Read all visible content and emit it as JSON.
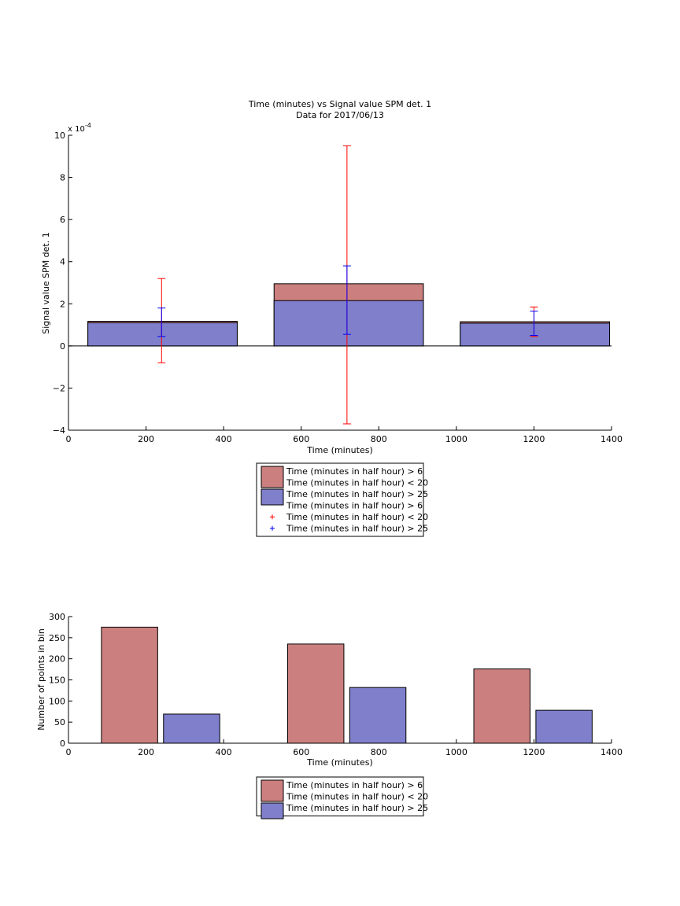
{
  "chart_data": [
    {
      "type": "bar",
      "title": "Time (minutes) vs Signal value SPM det. 1",
      "subtitle": "Data for 2017/06/13",
      "xlabel": "Time (minutes)",
      "ylabel": "Signal value SPM det. 1",
      "y_exponent_label": "x 10",
      "y_exponent_power": "-4",
      "xlim": [
        0,
        1400
      ],
      "ylim": [
        -4,
        10
      ],
      "xticks": [
        0,
        200,
        400,
        600,
        800,
        1000,
        1200,
        1400
      ],
      "yticks": [
        -4,
        -2,
        0,
        2,
        4,
        6,
        8,
        10
      ],
      "grid": false,
      "legend_position": "below",
      "bin_ranges": [
        [
          50,
          435
        ],
        [
          530,
          915
        ],
        [
          1010,
          1395
        ]
      ],
      "series": [
        {
          "name": "Time (minutes in half hour) > 6\nTime (minutes in half hour) < 20",
          "color": "#cc7f7f",
          "values": [
            1.17,
            2.95,
            1.15
          ],
          "errorbars": [
            {
              "x": 240,
              "low": -0.8,
              "high": 3.2
            },
            {
              "x": 718,
              "low": -3.7,
              "high": 9.5
            },
            {
              "x": 1200,
              "low": 0.45,
              "high": 1.85
            }
          ],
          "errorbar_color": "#ff0000"
        },
        {
          "name": "Time (minutes in half hour) > 25",
          "color": "#7f7fcc",
          "values": [
            1.1,
            2.15,
            1.08
          ],
          "errorbars": [
            {
              "x": 240,
              "low": 0.45,
              "high": 1.8
            },
            {
              "x": 718,
              "low": 0.55,
              "high": 3.8
            },
            {
              "x": 1200,
              "low": 0.5,
              "high": 1.65
            }
          ],
          "errorbar_color": "#0000ff"
        }
      ],
      "legend": [
        {
          "kind": "patch",
          "color": "#cc7f7f",
          "lines": [
            "Time (minutes in half hour) > 6",
            "Time (minutes in half hour) < 20"
          ]
        },
        {
          "kind": "patch",
          "color": "#7f7fcc",
          "lines": [
            "Time (minutes in half hour) > 25"
          ]
        },
        {
          "kind": "marker",
          "color": "#ff0000",
          "lines": [
            "Time (minutes in half hour) > 6",
            "Time (minutes in half hour) < 20"
          ]
        },
        {
          "kind": "marker",
          "color": "#0000ff",
          "lines": [
            "Time (minutes in half hour) > 25"
          ]
        }
      ]
    },
    {
      "type": "bar",
      "title": "",
      "xlabel": "Time (minutes)",
      "ylabel": "Number of points in bin",
      "xlim": [
        0,
        1400
      ],
      "ylim": [
        0,
        300
      ],
      "xticks": [
        0,
        200,
        400,
        600,
        800,
        1000,
        1200,
        1400
      ],
      "yticks": [
        0,
        50,
        100,
        150,
        200,
        250,
        300
      ],
      "grid": false,
      "legend_position": "below",
      "series": [
        {
          "name": "Time (minutes in half hour) > 6\nTime (minutes in half hour) < 20",
          "color": "#cc7f7f",
          "bars": [
            {
              "x0": 85,
              "x1": 230,
              "value": 275
            },
            {
              "x0": 565,
              "x1": 710,
              "value": 235
            },
            {
              "x0": 1045,
              "x1": 1190,
              "value": 176
            }
          ]
        },
        {
          "name": "Time (minutes in half hour) > 25",
          "color": "#7f7fcc",
          "bars": [
            {
              "x0": 245,
              "x1": 390,
              "value": 69
            },
            {
              "x0": 725,
              "x1": 870,
              "value": 132
            },
            {
              "x0": 1205,
              "x1": 1350,
              "value": 78
            }
          ]
        }
      ],
      "legend": [
        {
          "kind": "patch",
          "color": "#cc7f7f",
          "lines": [
            "Time (minutes in half hour) > 6",
            "Time (minutes in half hour) < 20"
          ]
        },
        {
          "kind": "patch",
          "color": "#7f7fcc",
          "lines": [
            "Time (minutes in half hour) > 25"
          ]
        }
      ]
    }
  ]
}
